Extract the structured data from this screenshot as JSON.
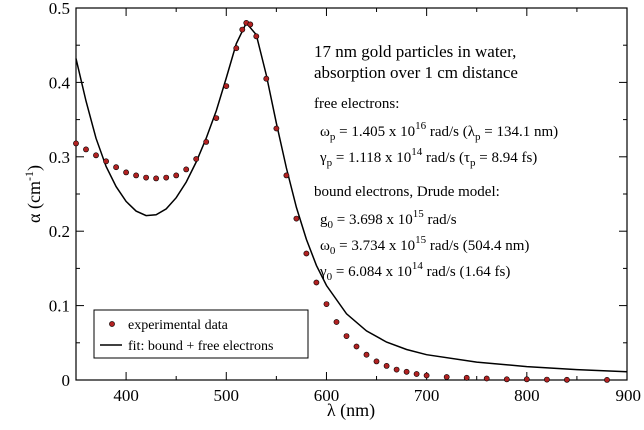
{
  "chart_data": {
    "type": "scatter",
    "xlabel": "λ (nm)",
    "ylabel": "α (cm-1)",
    "xlim": [
      350,
      900
    ],
    "ylim": [
      0,
      0.5
    ],
    "grid": false,
    "legend_placement": "bottom-left",
    "x_ticks": [
      400,
      500,
      600,
      700,
      800,
      900
    ],
    "y_ticks": [
      0,
      0.1,
      0.2,
      0.3,
      0.4,
      0.5
    ],
    "series": [
      {
        "name": "experimental data",
        "marker": "circle",
        "color": "#b22222",
        "points": [
          [
            350,
            0.318
          ],
          [
            360,
            0.31
          ],
          [
            370,
            0.302
          ],
          [
            380,
            0.294
          ],
          [
            390,
            0.286
          ],
          [
            400,
            0.279
          ],
          [
            410,
            0.275
          ],
          [
            420,
            0.272
          ],
          [
            430,
            0.271
          ],
          [
            440,
            0.272
          ],
          [
            450,
            0.275
          ],
          [
            460,
            0.283
          ],
          [
            470,
            0.297
          ],
          [
            480,
            0.32
          ],
          [
            490,
            0.352
          ],
          [
            500,
            0.395
          ],
          [
            510,
            0.446
          ],
          [
            516,
            0.471
          ],
          [
            520,
            0.48
          ],
          [
            524,
            0.478
          ],
          [
            530,
            0.462
          ],
          [
            540,
            0.405
          ],
          [
            550,
            0.338
          ],
          [
            560,
            0.275
          ],
          [
            570,
            0.217
          ],
          [
            580,
            0.17
          ],
          [
            590,
            0.131
          ],
          [
            600,
            0.102
          ],
          [
            610,
            0.078
          ],
          [
            620,
            0.059
          ],
          [
            630,
            0.045
          ],
          [
            640,
            0.034
          ],
          [
            650,
            0.025
          ],
          [
            660,
            0.019
          ],
          [
            670,
            0.014
          ],
          [
            680,
            0.011
          ],
          [
            690,
            0.008
          ],
          [
            700,
            0.006
          ],
          [
            720,
            0.004
          ],
          [
            740,
            0.003
          ],
          [
            760,
            0.002
          ],
          [
            780,
            0.001
          ],
          [
            800,
            0.001
          ],
          [
            820,
            0.0005
          ],
          [
            840,
            0.0003
          ],
          [
            880,
            0.0002
          ]
        ]
      },
      {
        "name": "fit: bound + free electrons",
        "type": "line",
        "color": "#000000",
        "points": [
          [
            350,
            0.432
          ],
          [
            360,
            0.375
          ],
          [
            370,
            0.325
          ],
          [
            380,
            0.287
          ],
          [
            390,
            0.26
          ],
          [
            400,
            0.24
          ],
          [
            410,
            0.227
          ],
          [
            420,
            0.221
          ],
          [
            430,
            0.222
          ],
          [
            440,
            0.23
          ],
          [
            450,
            0.245
          ],
          [
            460,
            0.266
          ],
          [
            470,
            0.293
          ],
          [
            480,
            0.325
          ],
          [
            490,
            0.362
          ],
          [
            500,
            0.406
          ],
          [
            510,
            0.452
          ],
          [
            520,
            0.48
          ],
          [
            530,
            0.464
          ],
          [
            540,
            0.41
          ],
          [
            550,
            0.345
          ],
          [
            560,
            0.285
          ],
          [
            570,
            0.232
          ],
          [
            580,
            0.189
          ],
          [
            590,
            0.154
          ],
          [
            600,
            0.127
          ],
          [
            620,
            0.089
          ],
          [
            640,
            0.066
          ],
          [
            660,
            0.051
          ],
          [
            680,
            0.041
          ],
          [
            700,
            0.034
          ],
          [
            750,
            0.024
          ],
          [
            800,
            0.018
          ],
          [
            850,
            0.014
          ],
          [
            900,
            0.011
          ]
        ]
      }
    ]
  },
  "annotation": {
    "title_line1": "17 nm gold  particles in water,",
    "title_line2": "absorption over 1 cm distance",
    "free_heading": "free electrons:",
    "free_line1": "ωp = 1.405 x 10^16 rad/s  (λp = 134.1 nm)",
    "free_line2": "γp = 1.118 x 10^14 rad/s  (τp = 8.94 fs)",
    "bound_heading": "bound electrons, Drude model:",
    "bound_line1": "g0 = 3.698 x 10^15 rad/s",
    "bound_line2": "ω0 = 3.734 x 10^15 rad/s   (504.4 nm)",
    "bound_line3": "γ0 = 6.084 x 10^14 rad/s   (1.64 fs)"
  },
  "legend": {
    "item1": "experimental data",
    "item2": "fit: bound + free electrons"
  }
}
